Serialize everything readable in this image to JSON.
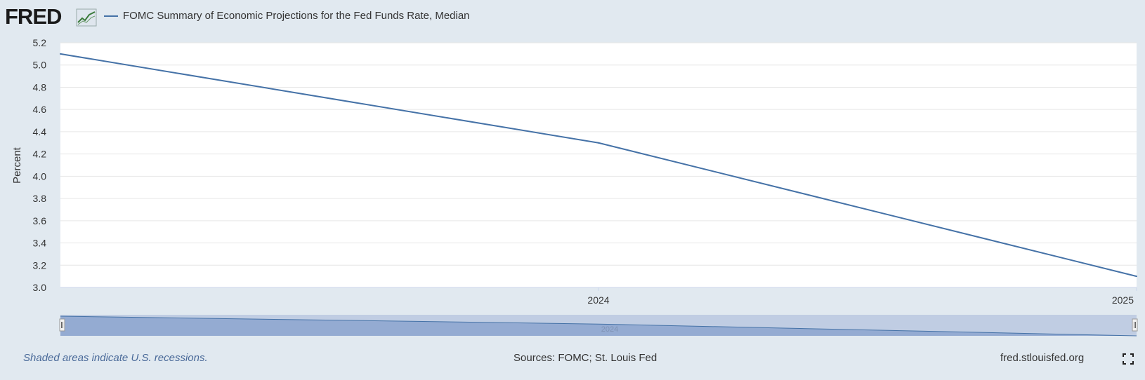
{
  "header": {
    "logo_text": "FRED",
    "logo_icon": "fred-chart-icon",
    "legend_label": "FOMC Summary of Economic Projections for the Fed Funds Rate, Median"
  },
  "chart_data": {
    "type": "line",
    "title": "",
    "xlabel": "",
    "ylabel": "Percent",
    "ylim": [
      3.0,
      5.2
    ],
    "yticks": [
      "3.0",
      "3.2",
      "3.4",
      "3.6",
      "3.8",
      "4.0",
      "4.2",
      "4.4",
      "4.6",
      "4.8",
      "5.0",
      "5.2"
    ],
    "xticks": [
      "2024",
      "2025"
    ],
    "grid": true,
    "legend": "top-left",
    "series": [
      {
        "name": "FOMC Summary of Economic Projections for the Fed Funds Rate, Median",
        "x": [
          "2023",
          "2024",
          "2025"
        ],
        "values": [
          5.1,
          4.3,
          3.1
        ]
      }
    ]
  },
  "navigator": {
    "label": "2024"
  },
  "footer": {
    "note": "Shaded areas indicate U.S. recessions.",
    "sources": "Sources: FOMC; St. Louis Fed",
    "site": "fred.stlouisfed.org",
    "fullscreen_icon": "fullscreen-icon"
  },
  "colors": {
    "line": "#4572a7",
    "background": "#e1e9f0",
    "plot_bg": "#ffffff",
    "navigator_fill": "#8fa7cf",
    "navigator_bg": "#c0cde3",
    "note_text": "#4a6a99"
  }
}
